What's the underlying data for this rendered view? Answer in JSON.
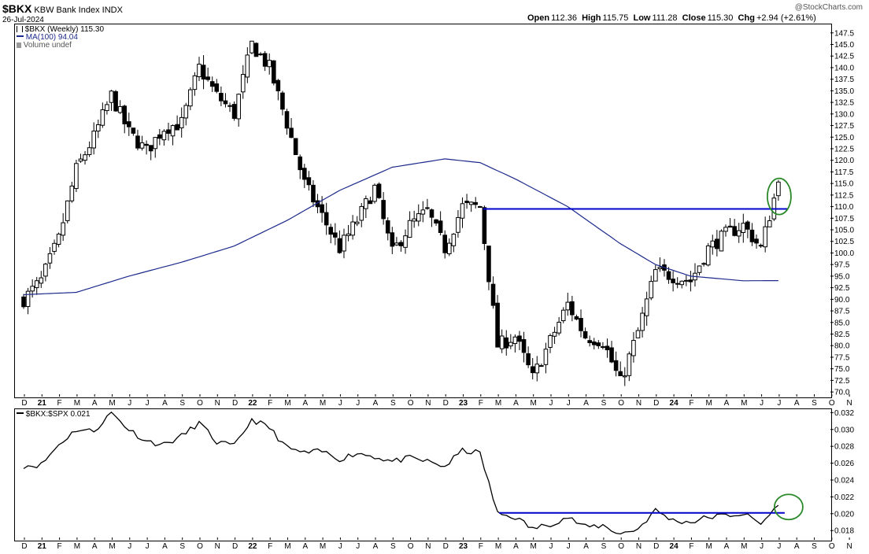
{
  "header": {
    "symbol": "$BKX",
    "name": "KBW Bank Index",
    "exchange": "INDX",
    "date": "26-Jul-2024",
    "open_label": "Open",
    "open": "112.36",
    "high_label": "High",
    "high": "115.75",
    "low_label": "Low",
    "low": "111.28",
    "close_label": "Close",
    "close": "115.30",
    "chg_label": "Chg",
    "chg": "+2.94 (+2.61%)",
    "watermark": "@StockCharts.com"
  },
  "legend": {
    "price": "$BKX (Weekly) 115.30",
    "ma": "MA(100) 94.04",
    "volume": "Volume undef",
    "ratio": "$BKX:$SPX 0.021"
  },
  "colors": {
    "ma_line": "#1c2a8c",
    "support_line": "#0000cc",
    "highlight_circle": "#2a8a2a"
  },
  "chart_data": [
    {
      "type": "candlestick",
      "title": "$BKX KBW Bank Index INDX",
      "period": "Weekly",
      "x_tick_labels": [
        "D",
        "21",
        "F",
        "M",
        "A",
        "M",
        "J",
        "J",
        "A",
        "S",
        "O",
        "N",
        "D",
        "22",
        "F",
        "M",
        "A",
        "M",
        "J",
        "J",
        "A",
        "S",
        "O",
        "N",
        "D",
        "23",
        "F",
        "M",
        "A",
        "M",
        "J",
        "J",
        "A",
        "S",
        "O",
        "N",
        "D",
        "24",
        "F",
        "M",
        "A",
        "M",
        "J",
        "J",
        "A",
        "S",
        "O",
        "N"
      ],
      "y_ticks": [
        70.0,
        72.5,
        75.0,
        77.5,
        80.0,
        82.5,
        85.0,
        87.5,
        90.0,
        92.5,
        95.0,
        97.5,
        100.0,
        102.5,
        105.0,
        107.5,
        110.0,
        112.5,
        115.0,
        117.5,
        120.0,
        122.5,
        125.0,
        127.5,
        130.0,
        132.5,
        135.0,
        137.5,
        140.0,
        142.5,
        145.0,
        147.5
      ],
      "ylim": [
        69,
        149.5
      ],
      "grid": false,
      "price_anchors": [
        {
          "x": "2020-12",
          "y": 90
        },
        {
          "x": "2021-01",
          "y": 94
        },
        {
          "x": "2021-02",
          "y": 103
        },
        {
          "x": "2021-03",
          "y": 118
        },
        {
          "x": "2021-04",
          "y": 125
        },
        {
          "x": "2021-05",
          "y": 134
        },
        {
          "x": "2021-06",
          "y": 126
        },
        {
          "x": "2021-07",
          "y": 122
        },
        {
          "x": "2021-08",
          "y": 127
        },
        {
          "x": "2021-09",
          "y": 128
        },
        {
          "x": "2021-10",
          "y": 140
        },
        {
          "x": "2021-11",
          "y": 134
        },
        {
          "x": "2021-12",
          "y": 130
        },
        {
          "x": "2022-01",
          "y": 145
        },
        {
          "x": "2022-02",
          "y": 140
        },
        {
          "x": "2022-03",
          "y": 128
        },
        {
          "x": "2022-04",
          "y": 115
        },
        {
          "x": "2022-05",
          "y": 108
        },
        {
          "x": "2022-06",
          "y": 101
        },
        {
          "x": "2022-07",
          "y": 107
        },
        {
          "x": "2022-08",
          "y": 114
        },
        {
          "x": "2022-09",
          "y": 100
        },
        {
          "x": "2022-10",
          "y": 106
        },
        {
          "x": "2022-11",
          "y": 109
        },
        {
          "x": "2022-12",
          "y": 101
        },
        {
          "x": "2023-01",
          "y": 110
        },
        {
          "x": "2023-02",
          "y": 110
        },
        {
          "x": "2023-03",
          "y": 80
        },
        {
          "x": "2023-04",
          "y": 82
        },
        {
          "x": "2023-05",
          "y": 73
        },
        {
          "x": "2023-06",
          "y": 81
        },
        {
          "x": "2023-07",
          "y": 89
        },
        {
          "x": "2023-08",
          "y": 82
        },
        {
          "x": "2023-09",
          "y": 81
        },
        {
          "x": "2023-10",
          "y": 72
        },
        {
          "x": "2023-11",
          "y": 83
        },
        {
          "x": "2023-12",
          "y": 96
        },
        {
          "x": "2024-01",
          "y": 95
        },
        {
          "x": "2024-02",
          "y": 94
        },
        {
          "x": "2024-03",
          "y": 101
        },
        {
          "x": "2024-04",
          "y": 104
        },
        {
          "x": "2024-05",
          "y": 106
        },
        {
          "x": "2024-06",
          "y": 101
        },
        {
          "x": "2024-07",
          "y": 115.3
        }
      ],
      "ma_anchors": [
        {
          "x": "2020-12",
          "y": 91
        },
        {
          "x": "2021-03",
          "y": 91.5
        },
        {
          "x": "2021-06",
          "y": 95
        },
        {
          "x": "2021-09",
          "y": 98
        },
        {
          "x": "2021-12",
          "y": 101.5
        },
        {
          "x": "2022-03",
          "y": 107
        },
        {
          "x": "2022-06",
          "y": 113.5
        },
        {
          "x": "2022-09",
          "y": 118.5
        },
        {
          "x": "2022-12",
          "y": 120.3
        },
        {
          "x": "2023-02",
          "y": 119.5
        },
        {
          "x": "2023-04",
          "y": 116
        },
        {
          "x": "2023-07",
          "y": 110
        },
        {
          "x": "2023-10",
          "y": 102
        },
        {
          "x": "2023-12",
          "y": 97.5
        },
        {
          "x": "2024-02",
          "y": 95
        },
        {
          "x": "2024-05",
          "y": 94
        },
        {
          "x": "2024-07",
          "y": 94.04
        }
      ],
      "support_line": {
        "y": 109.5,
        "x_start": "2023-02",
        "x_end": "2024-07"
      }
    },
    {
      "type": "line",
      "title": "$BKX:$SPX 0.021",
      "y_ticks": [
        0.018,
        0.02,
        0.022,
        0.024,
        0.026,
        0.028,
        0.03,
        0.032
      ],
      "ylim": [
        0.0169,
        0.0325
      ],
      "x_tick_labels": [
        "D",
        "21",
        "F",
        "M",
        "A",
        "M",
        "J",
        "J",
        "A",
        "S",
        "O",
        "N",
        "D",
        "22",
        "F",
        "M",
        "A",
        "M",
        "J",
        "J",
        "A",
        "S",
        "O",
        "N",
        "D",
        "23",
        "F",
        "M",
        "A",
        "M",
        "J",
        "J",
        "A",
        "S",
        "O",
        "N",
        "D",
        "24",
        "F",
        "M",
        "A",
        "M",
        "J",
        "J",
        "A",
        "S",
        "O",
        "N"
      ],
      "anchors": [
        {
          "x": "2020-12",
          "y": 0.0257
        },
        {
          "x": "2021-01",
          "y": 0.0258
        },
        {
          "x": "2021-02",
          "y": 0.0282
        },
        {
          "x": "2021-03",
          "y": 0.03
        },
        {
          "x": "2021-04",
          "y": 0.0298
        },
        {
          "x": "2021-05",
          "y": 0.032
        },
        {
          "x": "2021-06",
          "y": 0.03
        },
        {
          "x": "2021-07",
          "y": 0.0286
        },
        {
          "x": "2021-08",
          "y": 0.0282
        },
        {
          "x": "2021-09",
          "y": 0.0292
        },
        {
          "x": "2021-10",
          "y": 0.0308
        },
        {
          "x": "2021-11",
          "y": 0.0285
        },
        {
          "x": "2021-12",
          "y": 0.028
        },
        {
          "x": "2022-01",
          "y": 0.0312
        },
        {
          "x": "2022-02",
          "y": 0.0302
        },
        {
          "x": "2022-03",
          "y": 0.0278
        },
        {
          "x": "2022-04",
          "y": 0.0272
        },
        {
          "x": "2022-05",
          "y": 0.0274
        },
        {
          "x": "2022-06",
          "y": 0.0265
        },
        {
          "x": "2022-07",
          "y": 0.0272
        },
        {
          "x": "2022-08",
          "y": 0.0268
        },
        {
          "x": "2022-09",
          "y": 0.0262
        },
        {
          "x": "2022-10",
          "y": 0.0266
        },
        {
          "x": "2022-11",
          "y": 0.0262
        },
        {
          "x": "2022-12",
          "y": 0.0256
        },
        {
          "x": "2023-01",
          "y": 0.0275
        },
        {
          "x": "2023-02",
          "y": 0.0272
        },
        {
          "x": "2023-03",
          "y": 0.02
        },
        {
          "x": "2023-04",
          "y": 0.0196
        },
        {
          "x": "2023-05",
          "y": 0.0182
        },
        {
          "x": "2023-06",
          "y": 0.0188
        },
        {
          "x": "2023-07",
          "y": 0.0196
        },
        {
          "x": "2023-08",
          "y": 0.0184
        },
        {
          "x": "2023-09",
          "y": 0.0186
        },
        {
          "x": "2023-10",
          "y": 0.0176
        },
        {
          "x": "2023-11",
          "y": 0.0182
        },
        {
          "x": "2023-12",
          "y": 0.0204
        },
        {
          "x": "2024-01",
          "y": 0.0192
        },
        {
          "x": "2024-02",
          "y": 0.019
        },
        {
          "x": "2024-03",
          "y": 0.0196
        },
        {
          "x": "2024-04",
          "y": 0.0198
        },
        {
          "x": "2024-05",
          "y": 0.02
        },
        {
          "x": "2024-06",
          "y": 0.0188
        },
        {
          "x": "2024-07",
          "y": 0.021
        }
      ],
      "support_line": {
        "y": 0.0201,
        "x_start": "2023-03",
        "x_end": "2024-07"
      }
    }
  ]
}
